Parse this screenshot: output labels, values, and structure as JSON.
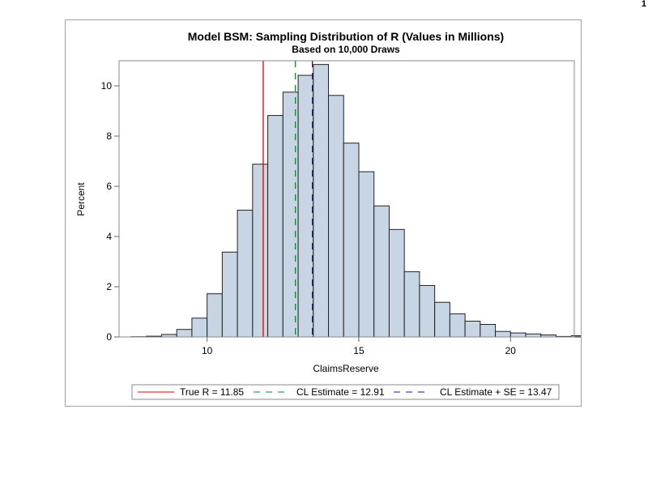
{
  "page_number": "1",
  "chart_data": {
    "type": "histogram",
    "title": "Model BSM: Sampling Distribution of R (Values in Millions)",
    "subtitle": "Based on 10,000 Draws",
    "xlabel": "ClaimsReserve",
    "ylabel": "Percent",
    "xlim": [
      7.1,
      22.1
    ],
    "ylim": [
      0,
      11
    ],
    "x_ticks": [
      10,
      15,
      20
    ],
    "y_ticks": [
      0,
      2,
      4,
      6,
      8,
      10
    ],
    "x_tick_labels": [
      "10",
      "15",
      "20"
    ],
    "y_tick_labels": [
      "0",
      "2",
      "4",
      "6",
      "8",
      "10"
    ],
    "bin_width": 0.5,
    "bins": [
      {
        "x0": 7.5,
        "value": 0.01
      },
      {
        "x0": 8.0,
        "value": 0.03
      },
      {
        "x0": 8.5,
        "value": 0.1
      },
      {
        "x0": 9.0,
        "value": 0.3
      },
      {
        "x0": 9.5,
        "value": 0.75
      },
      {
        "x0": 10.0,
        "value": 1.72
      },
      {
        "x0": 10.5,
        "value": 3.38
      },
      {
        "x0": 11.0,
        "value": 5.05
      },
      {
        "x0": 11.5,
        "value": 6.88
      },
      {
        "x0": 12.0,
        "value": 8.82
      },
      {
        "x0": 12.5,
        "value": 9.75
      },
      {
        "x0": 13.0,
        "value": 10.42
      },
      {
        "x0": 13.5,
        "value": 10.85
      },
      {
        "x0": 14.0,
        "value": 9.62
      },
      {
        "x0": 14.5,
        "value": 7.72
      },
      {
        "x0": 15.0,
        "value": 6.58
      },
      {
        "x0": 15.5,
        "value": 5.22
      },
      {
        "x0": 16.0,
        "value": 4.28
      },
      {
        "x0": 16.5,
        "value": 2.6
      },
      {
        "x0": 17.0,
        "value": 2.05
      },
      {
        "x0": 17.5,
        "value": 1.38
      },
      {
        "x0": 18.0,
        "value": 0.92
      },
      {
        "x0": 18.5,
        "value": 0.63
      },
      {
        "x0": 19.0,
        "value": 0.5
      },
      {
        "x0": 19.5,
        "value": 0.22
      },
      {
        "x0": 20.0,
        "value": 0.16
      },
      {
        "x0": 20.5,
        "value": 0.12
      },
      {
        "x0": 21.0,
        "value": 0.08
      },
      {
        "x0": 21.5,
        "value": 0.02
      },
      {
        "x0": 22.0,
        "value": 0.05
      }
    ],
    "bar_fill": "#c8d5e4",
    "bar_stroke": "#222222",
    "reference_lines": [
      {
        "name": "true-r",
        "value": 11.85,
        "label": "True R = 11.85",
        "color": "#e00000",
        "dash": "solid"
      },
      {
        "name": "cl-estimate",
        "value": 12.91,
        "label": "CL Estimate = 12.91",
        "color": "#0a8a2a",
        "dash": "dashed"
      },
      {
        "name": "cl-estimate-se",
        "value": 13.47,
        "label": "CL Estimate + SE = 13.47",
        "color": "#1010c0",
        "dash": "dashed"
      }
    ],
    "legend_position": "bottom"
  }
}
